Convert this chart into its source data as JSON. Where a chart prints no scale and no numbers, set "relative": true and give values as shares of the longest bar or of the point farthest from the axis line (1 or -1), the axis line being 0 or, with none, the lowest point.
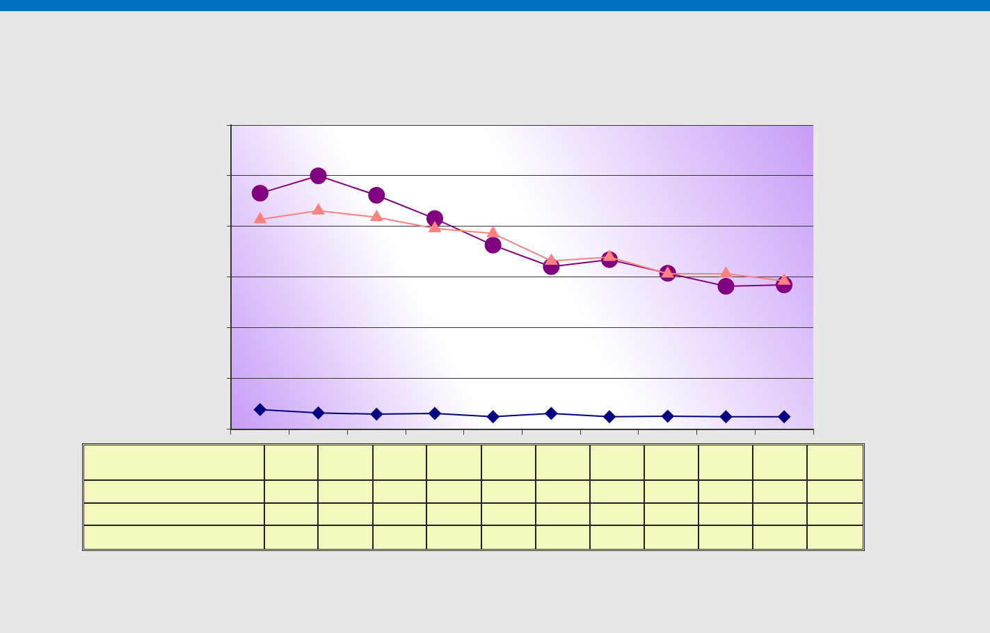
{
  "chart_data": {
    "type": "line",
    "relative": true,
    "categories": [
      null,
      null,
      null,
      null,
      null,
      null,
      null,
      null,
      null,
      null
    ],
    "grid": "y",
    "legend": false,
    "line_style": "solid",
    "series": [
      {
        "color": "#800080",
        "marker": "circle",
        "values": [
          0.931,
          1,
          0.923,
          0.831,
          0.726,
          0.641,
          0.669,
          0.615,
          0.564,
          0.569
        ]
      },
      {
        "color": "#ff8080",
        "marker": "triangle",
        "values": [
          0.828,
          0.862,
          0.836,
          0.792,
          0.772,
          0.664,
          0.679,
          0.613,
          0.613,
          0.585
        ]
      },
      {
        "color": "#000080",
        "marker": "diamond",
        "values": [
          0.077,
          0.064,
          0.059,
          0.062,
          0.049,
          0.062,
          0.049,
          0.051,
          0.049,
          0.049
        ]
      }
    ]
  }
}
